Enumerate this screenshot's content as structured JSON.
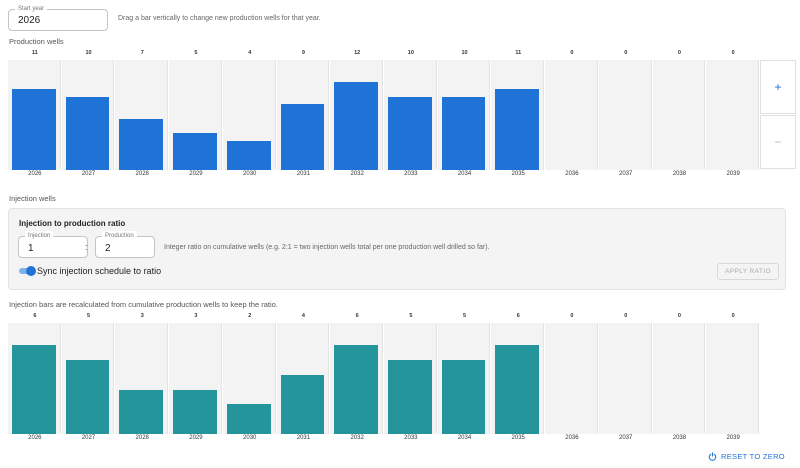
{
  "controls": {
    "start_year_label": "Start year",
    "start_year_value": "2026",
    "hint": "Drag a bar vertically to change new production wells for that year."
  },
  "production": {
    "label": "Production wells",
    "max": 12,
    "years": [
      "2026",
      "2027",
      "2028",
      "2029",
      "2030",
      "2031",
      "2032",
      "2033",
      "2034",
      "2035",
      "2036",
      "2037",
      "2038",
      "2039"
    ],
    "values": [
      11,
      10,
      7,
      5,
      4,
      9,
      12,
      10,
      10,
      11,
      0,
      0,
      0,
      0
    ],
    "color": "#1f73d6"
  },
  "side_buttons": {
    "plus": "+",
    "minus": "−"
  },
  "injection_label": "Injection wells",
  "ratio": {
    "title": "Injection to production ratio",
    "injection_label": "Injection",
    "injection_value": "1",
    "separator": ":",
    "production_label": "Production",
    "production_value": "2",
    "hint": "Integer ratio on cumulative wells (e.g. 2:1 = two injection wells total per one production well drilled so far).",
    "sync_label": "Sync injection schedule to ratio",
    "sync_on": true,
    "apply_label": "APPLY RATIO"
  },
  "recalc_note": "Injection bars are recalculated from cumulative production wells to keep the ratio.",
  "injection": {
    "max": 6,
    "years": [
      "2026",
      "2027",
      "2028",
      "2029",
      "2030",
      "2031",
      "2032",
      "2033",
      "2034",
      "2035",
      "2036",
      "2037",
      "2038",
      "2039"
    ],
    "values": [
      6,
      5,
      3,
      3,
      2,
      4,
      6,
      5,
      5,
      6,
      0,
      0,
      0,
      0
    ],
    "color": "#24959b"
  },
  "reset_label": "RESET TO ZERO"
}
